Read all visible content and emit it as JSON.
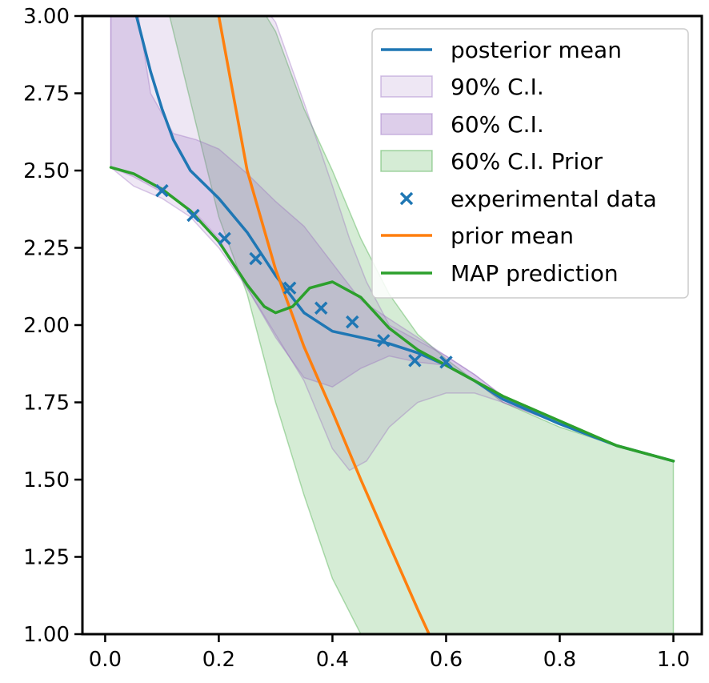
{
  "chart_data": {
    "type": "line",
    "title": "",
    "xlabel": "",
    "ylabel": "",
    "xlim": [
      -0.04,
      1.05
    ],
    "ylim": [
      1.0,
      3.0
    ],
    "x_ticks": [
      0.0,
      0.2,
      0.4,
      0.6,
      0.8,
      1.0
    ],
    "x_tick_labels": [
      "0.0",
      "0.2",
      "0.4",
      "0.6",
      "0.8",
      "1.0"
    ],
    "y_ticks": [
      1.0,
      1.25,
      1.5,
      1.75,
      2.0,
      2.25,
      2.5,
      2.75,
      3.0
    ],
    "y_tick_labels": [
      "1.00",
      "1.25",
      "1.50",
      "1.75",
      "2.00",
      "2.25",
      "2.50",
      "2.75",
      "3.00"
    ],
    "grid": false,
    "legend_position": "top-right",
    "legend": [
      "posterior mean",
      "90% C.I.",
      "60% C.I.",
      "60% C.I. Prior",
      "experimental data",
      "prior mean",
      "MAP prediction"
    ],
    "colors": {
      "posterior_mean": "#1f77b4",
      "ci90": "#9467bd",
      "ci60": "#9467bd",
      "prior_ci60": "#2ca02c",
      "data": "#1f77b4",
      "prior_mean": "#ff7f0e",
      "map": "#2ca02c"
    },
    "bands": [
      {
        "name": "60% C.I. Prior",
        "x": [
          0.01,
          0.1,
          0.2,
          0.25,
          0.3,
          0.35,
          0.4,
          0.45,
          0.5,
          0.55,
          0.6,
          0.7,
          0.8,
          0.9,
          1.0
        ],
        "lower": [
          3.1,
          3.1,
          2.35,
          2.1,
          1.75,
          1.45,
          1.18,
          1.0,
          1.0,
          1.0,
          1.0,
          1.0,
          1.0,
          1.0,
          1.0
        ],
        "upper": [
          3.1,
          3.1,
          3.1,
          3.1,
          2.95,
          2.7,
          2.5,
          2.28,
          2.1,
          1.97,
          1.89,
          1.75,
          1.67,
          1.61,
          1.56
        ]
      },
      {
        "name": "90% C.I.",
        "x": [
          0.01,
          0.05,
          0.1,
          0.15,
          0.2,
          0.25,
          0.3,
          0.35,
          0.4,
          0.43,
          0.46,
          0.5,
          0.55,
          0.6,
          0.65,
          0.7,
          0.8,
          0.9,
          1.0
        ],
        "lower": [
          2.51,
          2.45,
          2.41,
          2.35,
          2.25,
          2.12,
          1.97,
          1.82,
          1.6,
          1.53,
          1.56,
          1.67,
          1.75,
          1.78,
          1.78,
          1.75,
          1.68,
          1.61,
          1.56
        ],
        "upper": [
          3.1,
          3.1,
          3.1,
          3.1,
          3.1,
          3.1,
          2.98,
          2.72,
          2.45,
          2.28,
          2.14,
          2.0,
          1.95,
          1.9,
          1.84,
          1.77,
          1.68,
          1.61,
          1.56
        ]
      },
      {
        "name": "60% C.I.",
        "x": [
          0.01,
          0.05,
          0.08,
          0.12,
          0.16,
          0.2,
          0.25,
          0.3,
          0.35,
          0.4,
          0.45,
          0.5,
          0.55,
          0.6,
          0.65,
          0.7,
          0.8,
          0.9,
          1.0
        ],
        "lower": [
          2.51,
          2.48,
          2.45,
          2.41,
          2.36,
          2.28,
          2.12,
          1.96,
          1.83,
          1.8,
          1.86,
          1.9,
          1.88,
          1.87,
          1.82,
          1.75,
          1.68,
          1.61,
          1.56
        ],
        "upper": [
          3.1,
          3.1,
          2.75,
          2.62,
          2.6,
          2.57,
          2.49,
          2.4,
          2.32,
          2.2,
          2.08,
          2.02,
          1.96,
          1.9,
          1.84,
          1.77,
          1.68,
          1.61,
          1.56
        ]
      }
    ],
    "series": [
      {
        "name": "posterior mean",
        "x": [
          0.055,
          0.08,
          0.1,
          0.12,
          0.15,
          0.2,
          0.25,
          0.3,
          0.35,
          0.4,
          0.45,
          0.5,
          0.55,
          0.6,
          0.65,
          0.7,
          0.8,
          0.9,
          1.0
        ],
        "y": [
          3.0,
          2.82,
          2.7,
          2.6,
          2.5,
          2.41,
          2.3,
          2.16,
          2.04,
          1.98,
          1.96,
          1.94,
          1.91,
          1.87,
          1.82,
          1.76,
          1.68,
          1.61,
          1.56
        ]
      },
      {
        "name": "prior mean",
        "x": [
          0.2,
          0.25,
          0.3,
          0.32,
          0.35,
          0.4,
          0.45,
          0.5,
          0.55,
          0.57
        ],
        "y": [
          3.0,
          2.5,
          2.18,
          2.08,
          1.93,
          1.72,
          1.5,
          1.29,
          1.08,
          1.0
        ]
      },
      {
        "name": "MAP prediction",
        "x": [
          0.01,
          0.05,
          0.1,
          0.15,
          0.2,
          0.25,
          0.28,
          0.3,
          0.33,
          0.36,
          0.4,
          0.45,
          0.5,
          0.55,
          0.6,
          0.7,
          0.8,
          0.9,
          1.0
        ],
        "y": [
          2.51,
          2.49,
          2.44,
          2.37,
          2.27,
          2.13,
          2.06,
          2.04,
          2.06,
          2.12,
          2.14,
          2.09,
          1.99,
          1.92,
          1.87,
          1.77,
          1.69,
          1.61,
          1.56
        ]
      }
    ],
    "scatter": {
      "name": "experimental data",
      "x": [
        0.1,
        0.155,
        0.21,
        0.265,
        0.325,
        0.38,
        0.435,
        0.49,
        0.545,
        0.6
      ],
      "y": [
        2.435,
        2.355,
        2.28,
        2.215,
        2.12,
        2.055,
        2.01,
        1.95,
        1.885,
        1.88
      ]
    }
  }
}
